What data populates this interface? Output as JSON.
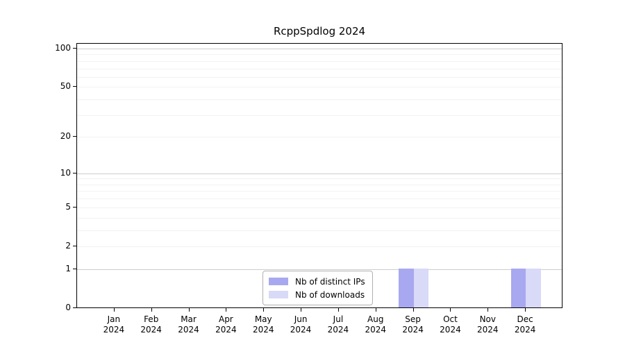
{
  "chart_data": {
    "type": "bar",
    "title": "RcppSpdlog 2024",
    "xlabel": "",
    "ylabel": "",
    "y_scale": "log1p",
    "ylim": [
      0,
      110
    ],
    "grid": "on",
    "legend_position": "inside-bottom-center",
    "categories": [
      {
        "month": "Jan",
        "year": "2024"
      },
      {
        "month": "Feb",
        "year": "2024"
      },
      {
        "month": "Mar",
        "year": "2024"
      },
      {
        "month": "Apr",
        "year": "2024"
      },
      {
        "month": "May",
        "year": "2024"
      },
      {
        "month": "Jun",
        "year": "2024"
      },
      {
        "month": "Jul",
        "year": "2024"
      },
      {
        "month": "Aug",
        "year": "2024"
      },
      {
        "month": "Sep",
        "year": "2024"
      },
      {
        "month": "Oct",
        "year": "2024"
      },
      {
        "month": "Nov",
        "year": "2024"
      },
      {
        "month": "Dec",
        "year": "2024"
      }
    ],
    "series": [
      {
        "name": "Nb of distinct IPs",
        "color": "#a8a8f0",
        "values": [
          0,
          0,
          0,
          0,
          0,
          0,
          0,
          0,
          1,
          0,
          0,
          1
        ]
      },
      {
        "name": "Nb of downloads",
        "color": "#d9d9f8",
        "values": [
          0,
          0,
          0,
          0,
          0,
          0,
          0,
          0,
          1,
          0,
          0,
          1
        ]
      }
    ],
    "y_ticks": [
      {
        "label": "100",
        "value": 100
      },
      {
        "label": "50",
        "value": 50
      },
      {
        "label": "20",
        "value": 20
      },
      {
        "label": "10",
        "value": 10
      },
      {
        "label": "5",
        "value": 5
      },
      {
        "label": "2",
        "value": 2
      },
      {
        "label": "1",
        "value": 1
      },
      {
        "label": "0",
        "value": 0
      }
    ],
    "minor_grid_values": [
      2,
      3,
      4,
      5,
      6,
      7,
      8,
      9,
      20,
      30,
      40,
      50,
      60,
      70,
      80,
      90
    ],
    "major_grid_values": [
      1,
      10,
      100
    ]
  },
  "colors": {
    "background": "#ffffff",
    "axis": "#000000",
    "grid_major": "#cccccc",
    "grid_minor": "#f2f2f2",
    "legend_border": "#b0b0b0",
    "text": "#000000"
  }
}
